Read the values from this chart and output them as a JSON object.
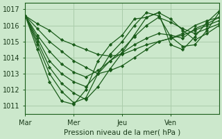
{
  "background_color": "#cce8cc",
  "grid_color": "#aaccaa",
  "line_color": "#1a5c1a",
  "marker_color": "#1a5c1a",
  "ylabel_ticks": [
    1011,
    1012,
    1013,
    1014,
    1015,
    1016,
    1017
  ],
  "ylim": [
    1010.5,
    1017.4
  ],
  "xlim": [
    0,
    96
  ],
  "xtick_positions": [
    0,
    24,
    48,
    72,
    96
  ],
  "xtick_labels": [
    "Mar",
    "Mer",
    "Jeu",
    "Ven",
    ""
  ],
  "xlabel": "Pression niveau de la mer( hPa )",
  "lines": [
    [
      0,
      1016.6,
      6,
      1016.1,
      12,
      1015.7,
      18,
      1015.1,
      24,
      1014.8,
      30,
      1014.5,
      36,
      1014.2,
      42,
      1014.1,
      48,
      1014.2,
      54,
      1014.5,
      60,
      1014.8,
      66,
      1015.0,
      72,
      1015.2,
      78,
      1015.4,
      84,
      1015.7,
      90,
      1016.0,
      96,
      1016.3
    ],
    [
      0,
      1016.6,
      6,
      1015.8,
      12,
      1015.0,
      18,
      1014.4,
      24,
      1013.8,
      30,
      1013.4,
      36,
      1013.0,
      42,
      1013.2,
      48,
      1013.5,
      54,
      1014.0,
      60,
      1014.5,
      66,
      1015.0,
      72,
      1015.2,
      78,
      1015.5,
      84,
      1016.0,
      90,
      1016.3,
      96,
      1016.5
    ],
    [
      0,
      1016.6,
      6,
      1015.4,
      12,
      1014.4,
      18,
      1013.6,
      24,
      1013.1,
      30,
      1012.8,
      36,
      1013.2,
      42,
      1013.8,
      48,
      1014.3,
      54,
      1014.8,
      60,
      1015.2,
      66,
      1015.5,
      72,
      1015.4,
      78,
      1015.2,
      84,
      1015.8,
      90,
      1016.1,
      96,
      1016.5
    ],
    [
      0,
      1016.6,
      6,
      1015.2,
      12,
      1013.8,
      18,
      1013.0,
      24,
      1012.5,
      30,
      1012.2,
      36,
      1013.0,
      42,
      1013.8,
      48,
      1014.5,
      54,
      1015.3,
      60,
      1016.0,
      66,
      1016.5,
      72,
      1016.2,
      78,
      1015.8,
      84,
      1015.5,
      90,
      1015.8,
      96,
      1016.1
    ],
    [
      0,
      1016.6,
      6,
      1015.0,
      12,
      1013.4,
      18,
      1012.4,
      24,
      1011.8,
      30,
      1011.4,
      36,
      1012.2,
      42,
      1013.3,
      48,
      1014.3,
      54,
      1015.4,
      60,
      1016.5,
      66,
      1016.8,
      72,
      1016.4,
      78,
      1015.7,
      84,
      1015.1,
      90,
      1015.5,
      96,
      1016.0
    ],
    [
      0,
      1016.6,
      6,
      1014.8,
      12,
      1013.0,
      18,
      1011.9,
      24,
      1011.2,
      30,
      1011.5,
      36,
      1013.0,
      42,
      1014.2,
      48,
      1015.0,
      54,
      1016.0,
      60,
      1016.8,
      66,
      1016.6,
      72,
      1015.3,
      78,
      1014.7,
      84,
      1014.8,
      90,
      1015.7,
      96,
      1016.8
    ],
    [
      0,
      1016.6,
      6,
      1014.5,
      12,
      1012.5,
      18,
      1011.3,
      24,
      1011.1,
      30,
      1012.0,
      36,
      1013.8,
      42,
      1014.8,
      48,
      1015.4,
      54,
      1016.4,
      60,
      1016.5,
      66,
      1016.8,
      72,
      1014.8,
      78,
      1014.5,
      84,
      1015.3,
      90,
      1016.2,
      96,
      1016.9
    ]
  ],
  "figsize": [
    3.2,
    2.0
  ],
  "dpi": 100
}
